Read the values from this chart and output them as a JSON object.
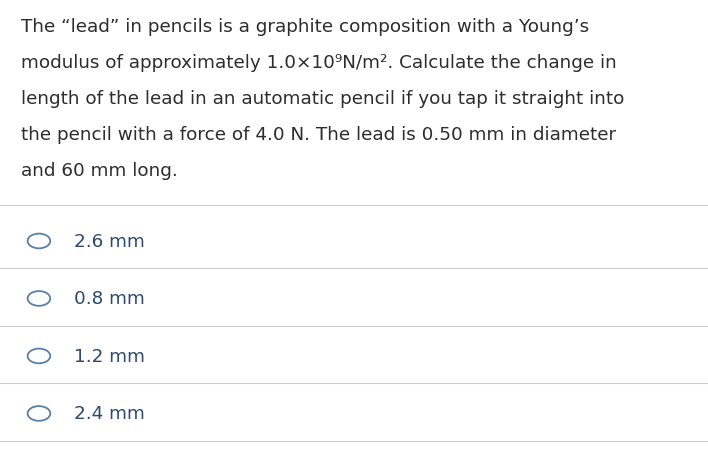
{
  "background_color": "#ffffff",
  "question_text_lines": [
    "The “lead” in pencils is a graphite composition with a Young’s",
    "modulus of approximately 1.0×10⁹N/m². Calculate the change in",
    "length of the lead in an automatic pencil if you tap it straight into",
    "the pencil with a force of 4.0 N. The lead is 0.50 mm in diameter",
    "and 60 mm long."
  ],
  "options": [
    "2.6 mm",
    "0.8 mm",
    "1.2 mm",
    "2.4 mm"
  ],
  "text_color": "#2d2d2d",
  "option_color": "#2d4a6e",
  "line_color": "#cccccc",
  "circle_color": "#5a7fa8",
  "question_fontsize": 13.2,
  "option_fontsize": 13.2
}
